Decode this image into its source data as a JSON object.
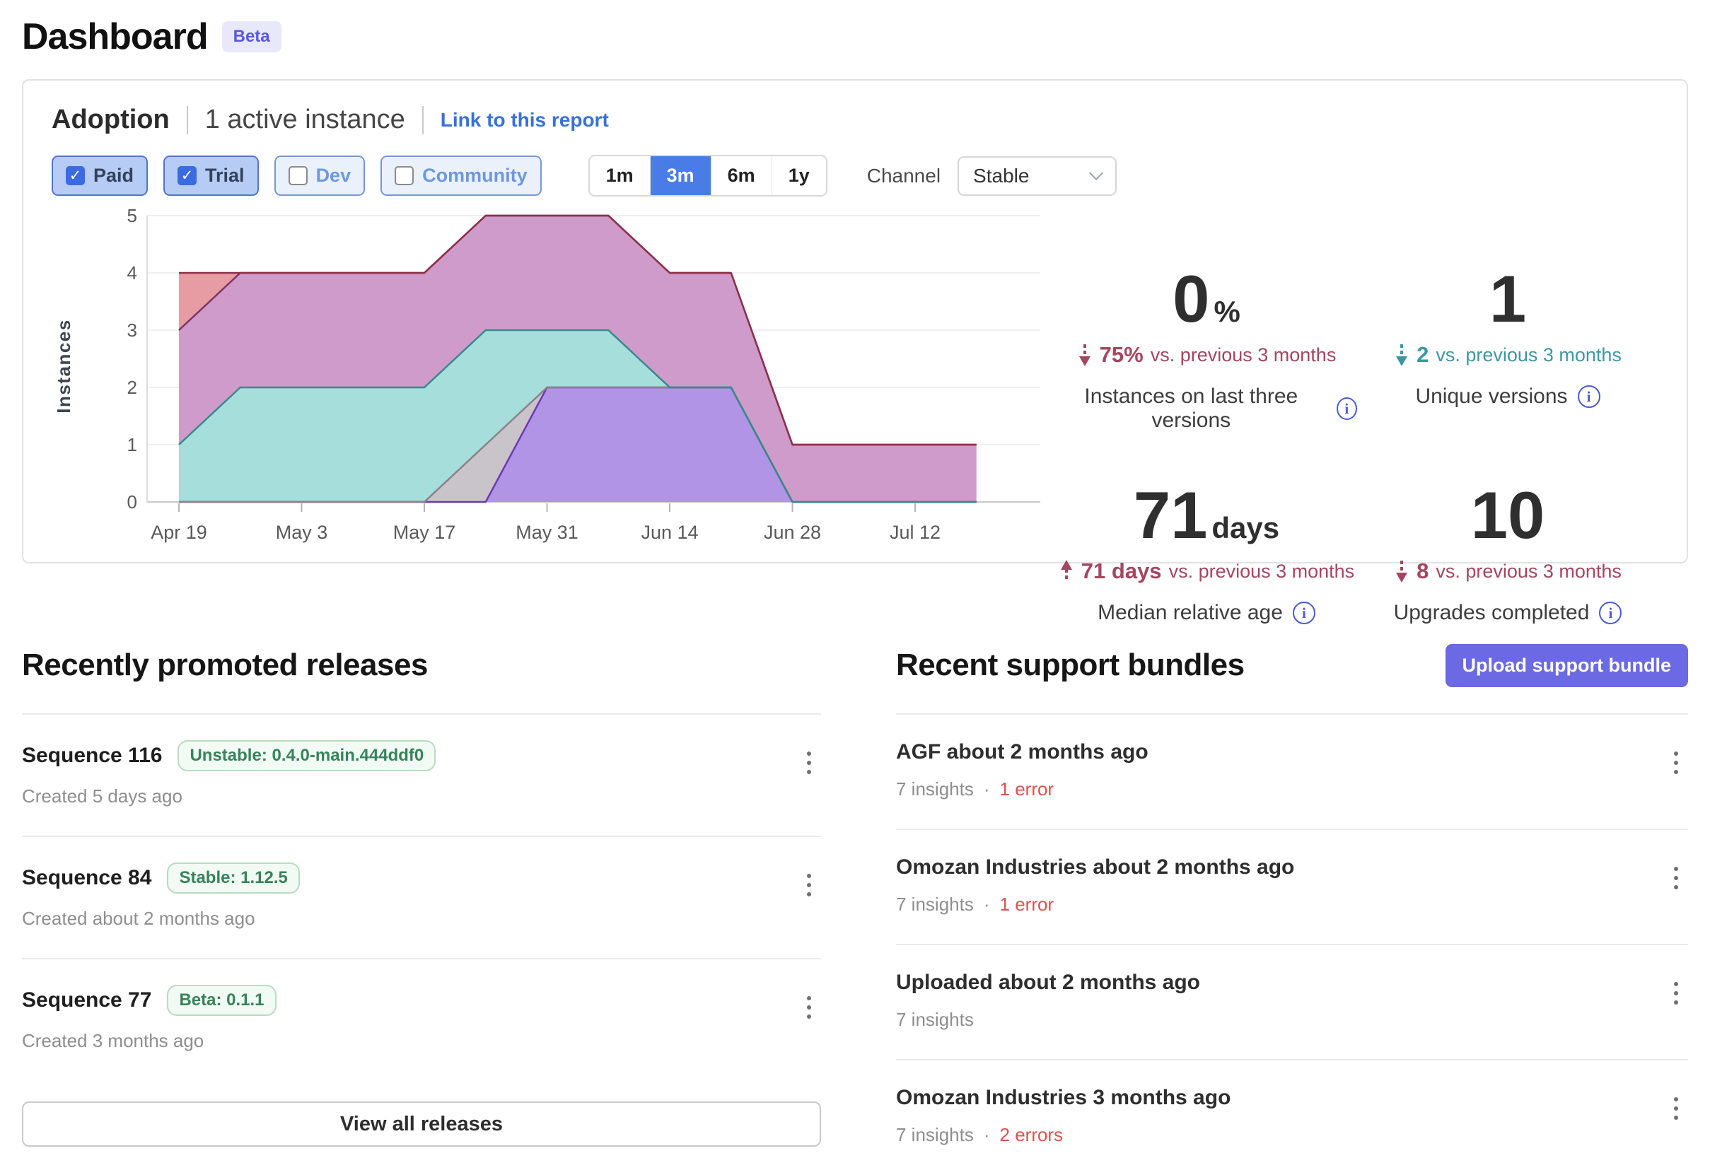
{
  "page": {
    "title": "Dashboard",
    "beta_badge": "Beta"
  },
  "adoption": {
    "title": "Adoption",
    "active_instances": "1 active instance",
    "link": "Link to this report",
    "filters": [
      {
        "label": "Paid",
        "checked": true,
        "check_glyph": "✓"
      },
      {
        "label": "Trial",
        "checked": true,
        "check_glyph": "✓"
      },
      {
        "label": "Dev",
        "checked": false,
        "check_glyph": ""
      },
      {
        "label": "Community",
        "checked": false,
        "check_glyph": ""
      }
    ],
    "time_ranges": [
      {
        "label": "1m",
        "selected": false
      },
      {
        "label": "3m",
        "selected": true
      },
      {
        "label": "6m",
        "selected": false
      },
      {
        "label": "1y",
        "selected": false
      }
    ],
    "channel_label": "Channel",
    "channel_value": "Stable",
    "stats": [
      {
        "value": "0",
        "unit": "%",
        "direction": "down",
        "trend_color": "#a4465f",
        "change": "75%",
        "change_rest": "vs. previous 3 months",
        "label": "Instances on last three versions",
        "info_icon": "i"
      },
      {
        "value": "1",
        "unit": "",
        "direction": "down",
        "trend_color": "#3f96a2",
        "change": "2",
        "change_rest": "vs. previous 3 months",
        "label": "Unique versions",
        "info_icon": "i"
      },
      {
        "value": "71",
        "unit": "days",
        "direction": "up",
        "trend_color": "#a4465f",
        "change": "71 days",
        "change_rest": "vs. previous 3 months",
        "label": "Median relative age",
        "info_icon": "i"
      },
      {
        "value": "10",
        "unit": "",
        "direction": "down",
        "trend_color": "#a4465f",
        "change": "8",
        "change_rest": "vs. previous 3 months",
        "label": "Upgrades completed",
        "info_icon": "i"
      }
    ]
  },
  "chart_data": {
    "type": "area",
    "stacked": true,
    "title": "",
    "xlabel": "",
    "ylabel": "Instances",
    "ylim": [
      0,
      5
    ],
    "y_ticks": [
      0,
      1,
      2,
      3,
      4,
      5
    ],
    "grid": true,
    "legend": "none",
    "x_days": [
      0,
      7,
      14,
      21,
      28,
      35,
      42,
      49,
      56,
      63,
      70,
      77,
      84,
      91
    ],
    "x_tick_days": [
      0,
      14,
      28,
      42,
      56,
      70,
      84
    ],
    "x_tick_labels": [
      "Apr 19",
      "May 3",
      "May 17",
      "May 31",
      "Jun 14",
      "Jun 28",
      "Jul 12"
    ],
    "series": [
      {
        "name": "purple",
        "fill": "#b194e5",
        "stroke": "#6a3ab2",
        "values": [
          0,
          0,
          0,
          0,
          0,
          0,
          2,
          2,
          2,
          2,
          0,
          0,
          0,
          0
        ]
      },
      {
        "name": "gray",
        "fill": "#c9c4ca",
        "stroke": "#8a8289",
        "values": [
          0,
          0,
          0,
          0,
          0,
          1,
          0,
          0,
          0,
          0,
          0,
          0,
          0,
          0
        ]
      },
      {
        "name": "teal",
        "fill": "#a6dedb",
        "stroke": "#37898e",
        "values": [
          1,
          2,
          2,
          2,
          2,
          2,
          1,
          1,
          0,
          0,
          0,
          0,
          0,
          0
        ]
      },
      {
        "name": "mauve",
        "fill": "#ce9bca",
        "stroke": "#7d3364",
        "values": [
          2,
          2,
          2,
          2,
          2,
          2,
          2,
          2,
          2,
          2,
          1,
          1,
          1,
          1
        ]
      },
      {
        "name": "salmon",
        "fill": "#e79ba3",
        "stroke": "#8e2f47",
        "values": [
          1,
          0,
          0,
          0,
          0,
          0,
          0,
          0,
          0,
          0,
          0,
          0,
          0,
          0
        ]
      }
    ]
  },
  "releases": {
    "heading": "Recently promoted releases",
    "view_all": "View all releases",
    "items": [
      {
        "title": "Sequence 116",
        "badge": "Unstable: 0.4.0-main.444ddf0",
        "meta": "Created 5 days ago"
      },
      {
        "title": "Sequence 84",
        "badge": "Stable: 1.12.5",
        "meta": "Created about 2 months ago"
      },
      {
        "title": "Sequence 77",
        "badge": "Beta: 0.1.1",
        "meta": "Created 3 months ago"
      }
    ]
  },
  "support_bundles": {
    "heading": "Recent support bundles",
    "upload_button": "Upload support bundle",
    "items": [
      {
        "title": "AGF about 2 months ago",
        "insights": "7 insights",
        "sep": "·",
        "errors": "1 error"
      },
      {
        "title": "Omozan Industries about 2 months ago",
        "insights": "7 insights",
        "sep": "·",
        "errors": "1 error"
      },
      {
        "title": "Uploaded about 2 months ago",
        "insights": "7 insights",
        "sep": "",
        "errors": ""
      },
      {
        "title": "Omozan Industries 3 months ago",
        "insights": "7 insights",
        "sep": "·",
        "errors": "2 errors"
      }
    ]
  }
}
